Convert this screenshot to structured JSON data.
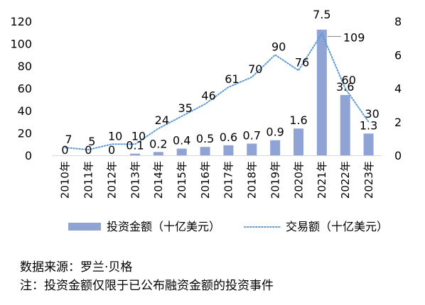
{
  "chart_data": {
    "type": "bar",
    "categories": [
      "2010年",
      "2011年",
      "2012年",
      "2013年",
      "2014年",
      "2015年",
      "2016年",
      "2017年",
      "2018年",
      "2019年",
      "2020年",
      "2021年",
      "2022年",
      "2023年"
    ],
    "series": [
      {
        "name": "投资金额（十亿美元）",
        "type": "bar",
        "axis": "right",
        "color": "#8FA3D5",
        "values": [
          0,
          0,
          0,
          0.1,
          0.2,
          0.4,
          0.5,
          0.6,
          0.7,
          0.9,
          1.6,
          7.5,
          3.6,
          1.3
        ],
        "labels": [
          "0",
          "0",
          "0",
          "0.1",
          "0.2",
          "0.4",
          "0.5",
          "0.6",
          "0.7",
          "0.9",
          "1.6",
          "7.5",
          "3.6",
          "1.3"
        ]
      },
      {
        "name": "交易额（十亿美元）",
        "type": "line",
        "style": "dotted",
        "axis": "left",
        "color": "#5B9BD5",
        "values": [
          7,
          5,
          10,
          10,
          24,
          35,
          46,
          61,
          70,
          90,
          76,
          109,
          60,
          30
        ],
        "labels": [
          "7",
          "5",
          "10",
          "10",
          "24",
          "35",
          "46",
          "61",
          "70",
          "90",
          "76",
          "109",
          "60",
          "30"
        ]
      }
    ],
    "y_left": {
      "min": 0,
      "max": 120,
      "ticks": [
        "0",
        "20",
        "40",
        "60",
        "80",
        "100",
        "120"
      ]
    },
    "y_right": {
      "min": 0,
      "max": 8,
      "ticks": [
        "0",
        "2",
        "4",
        "6",
        "8"
      ]
    },
    "grid": false,
    "legend_position": "bottom"
  },
  "notes": {
    "source": "数据来源：罗兰·贝格",
    "note": "注：投资金额仅限于已公布融资金额的投资事件"
  }
}
